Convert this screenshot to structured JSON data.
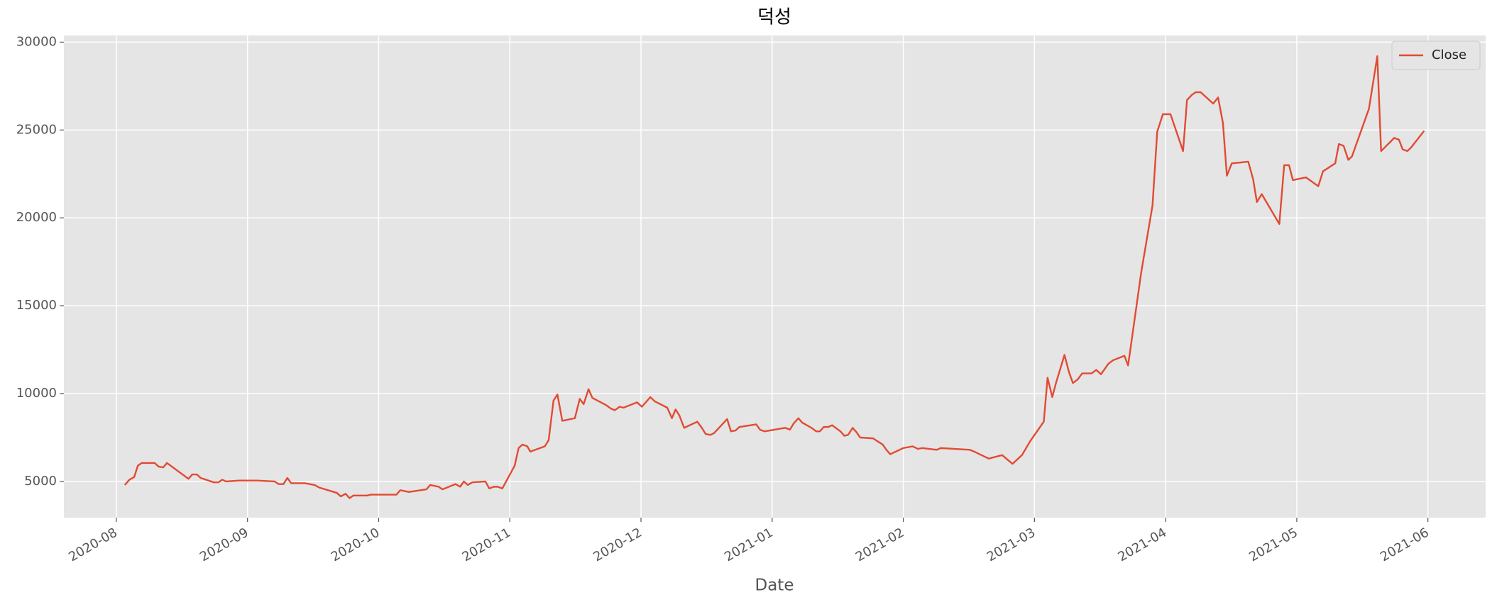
{
  "chart_data": {
    "type": "line",
    "title": "덕성",
    "x_label": "Date",
    "xlim": [
      7.6,
      18.44
    ],
    "ylim": [
      2940,
      30380
    ],
    "xticks": [
      {
        "value": 8,
        "label": "2020-08"
      },
      {
        "value": 9,
        "label": "2020-09"
      },
      {
        "value": 10,
        "label": "2020-10"
      },
      {
        "value": 11,
        "label": "2020-11"
      },
      {
        "value": 12,
        "label": "2020-12"
      },
      {
        "value": 13,
        "label": "2021-01"
      },
      {
        "value": 14,
        "label": "2021-02"
      },
      {
        "value": 15,
        "label": "2021-03"
      },
      {
        "value": 16,
        "label": "2021-04"
      },
      {
        "value": 17,
        "label": "2021-05"
      },
      {
        "value": 18,
        "label": "2021-06"
      }
    ],
    "yticks": [
      5000,
      10000,
      15000,
      20000,
      25000,
      30000
    ],
    "grid": true,
    "legend": "upper right",
    "x": [
      8.064,
      8.1,
      8.136,
      8.164,
      8.193,
      8.293,
      8.321,
      8.357,
      8.386,
      8.55,
      8.579,
      8.614,
      8.643,
      8.743,
      8.779,
      8.807,
      8.836,
      8.936,
      8.971,
      9.037,
      9.074,
      9.207,
      9.237,
      9.274,
      9.304,
      9.333,
      9.437,
      9.511,
      9.548,
      9.681,
      9.711,
      9.748,
      9.778,
      9.807,
      9.911,
      9.941,
      10.136,
      10.164,
      10.2,
      10.229,
      10.364,
      10.393,
      10.457,
      10.486,
      10.586,
      10.621,
      10.65,
      10.679,
      10.714,
      10.814,
      10.843,
      10.879,
      10.907,
      10.943,
      11.037,
      11.067,
      11.096,
      11.133,
      11.156,
      11.267,
      11.296,
      11.333,
      11.363,
      11.4,
      11.496,
      11.533,
      11.563,
      11.6,
      11.63,
      11.733,
      11.77,
      11.8,
      11.837,
      11.867,
      11.97,
      12.007,
      12.071,
      12.107,
      12.2,
      12.236,
      12.264,
      12.293,
      12.329,
      12.429,
      12.464,
      12.493,
      12.529,
      12.557,
      12.657,
      12.686,
      12.721,
      12.75,
      12.879,
      12.907,
      12.943,
      13.1,
      13.136,
      13.164,
      13.2,
      13.229,
      13.3,
      13.336,
      13.364,
      13.393,
      13.429,
      13.457,
      13.521,
      13.55,
      13.579,
      13.614,
      13.643,
      13.671,
      13.771,
      13.8,
      13.843,
      13.871,
      13.9,
      14,
      14.071,
      14.111,
      14.143,
      14.254,
      14.286,
      14.508,
      14.54,
      14.651,
      14.754,
      14.833,
      14.905,
      14.968,
      15.071,
      15.1,
      15.136,
      15.164,
      15.229,
      15.264,
      15.293,
      15.329,
      15.364,
      15.436,
      15.471,
      15.507,
      15.564,
      15.6,
      15.686,
      15.714,
      15.814,
      15.9,
      15.936,
      15.979,
      16.037,
      16.133,
      16.163,
      16.2,
      16.23,
      16.267,
      16.363,
      16.4,
      16.437,
      16.467,
      16.504,
      16.63,
      16.667,
      16.696,
      16.733,
      16.867,
      16.904,
      16.941,
      16.97,
      17.071,
      17.164,
      17.2,
      17.293,
      17.321,
      17.357,
      17.393,
      17.421,
      17.55,
      17.614,
      17.643,
      17.743,
      17.779,
      17.807,
      17.843,
      17.871,
      17.971
    ],
    "series": [
      {
        "name": "Close",
        "color": "#e24a33",
        "values": [
          4800,
          5100,
          5250,
          5900,
          6050,
          6050,
          5850,
          5800,
          6050,
          5150,
          5400,
          5400,
          5200,
          4950,
          4950,
          5100,
          5000,
          5050,
          5050,
          5050,
          5050,
          5000,
          4850,
          4850,
          5200,
          4900,
          4900,
          4800,
          4650,
          4350,
          4150,
          4300,
          4050,
          4200,
          4200,
          4250,
          4250,
          4500,
          4450,
          4400,
          4550,
          4800,
          4700,
          4550,
          4850,
          4700,
          5000,
          4800,
          4950,
          5000,
          4600,
          4700,
          4700,
          4600,
          5900,
          6900,
          7100,
          7000,
          6700,
          7000,
          7350,
          9600,
          9950,
          8450,
          8600,
          9700,
          9400,
          10250,
          9750,
          9350,
          9150,
          9050,
          9250,
          9200,
          9500,
          9250,
          9800,
          9550,
          9200,
          8600,
          9100,
          8750,
          8050,
          8400,
          8050,
          7700,
          7650,
          7750,
          8550,
          7850,
          7900,
          8100,
          8250,
          7950,
          7850,
          8050,
          7950,
          8300,
          8600,
          8350,
          8050,
          7850,
          7850,
          8100,
          8100,
          8200,
          7850,
          7600,
          7650,
          8050,
          7800,
          7500,
          7450,
          7300,
          7100,
          6800,
          6550,
          6900,
          7000,
          6850,
          6900,
          6800,
          6900,
          6800,
          6700,
          6300,
          6500,
          6000,
          6500,
          7300,
          8400,
          10900,
          9800,
          10600,
          12200,
          11200,
          10600,
          10800,
          11150,
          11150,
          11350,
          11100,
          11700,
          11900,
          12150,
          11600,
          16900,
          20700,
          24900,
          25900,
          25900,
          23800,
          26700,
          27000,
          27150,
          27150,
          26500,
          26850,
          25400,
          22400,
          23100,
          23200,
          22200,
          20900,
          21350,
          19650,
          23000,
          23000,
          22150,
          22300,
          21800,
          22650,
          23100,
          24200,
          24100,
          23300,
          23500,
          26200,
          29200,
          23800,
          24550,
          24450,
          23900,
          23800,
          24000,
          24950
        ]
      }
    ]
  }
}
